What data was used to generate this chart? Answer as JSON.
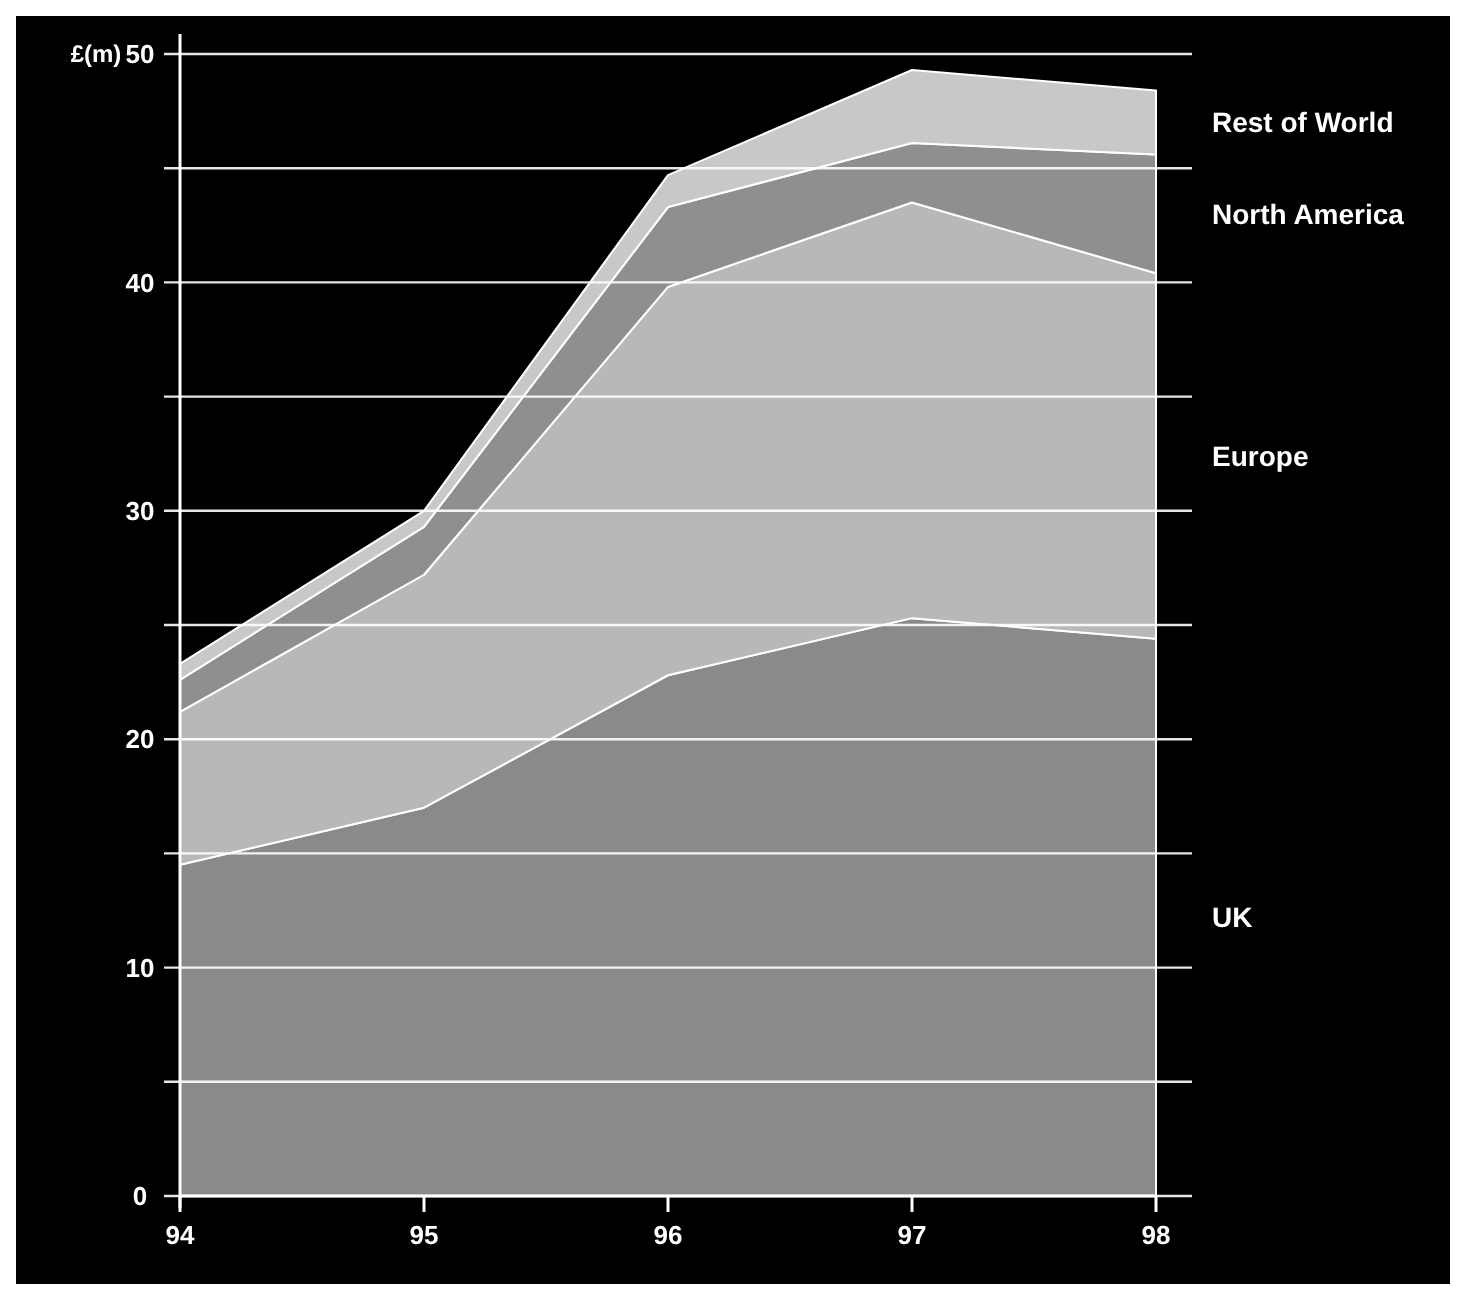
{
  "chart_data": {
    "type": "area",
    "stacked": true,
    "ylabel": "£(m)",
    "x": [
      94,
      95,
      96,
      97,
      98
    ],
    "xlim": [
      94,
      98
    ],
    "xticks": [
      94,
      95,
      96,
      97,
      98
    ],
    "ylim": [
      0,
      50
    ],
    "yticks": [
      0,
      {
        "value": 5,
        "label": null
      },
      10,
      {
        "value": 15,
        "label": null
      },
      20,
      {
        "value": 25,
        "label": null
      },
      30,
      {
        "value": 35,
        "label": null
      },
      40,
      {
        "value": 45,
        "label": null
      },
      50
    ],
    "grid": "y",
    "series": [
      {
        "name": "UK",
        "color": "#8a8a8a",
        "values": [
          14.5,
          17,
          22.8,
          25.3,
          24.4
        ]
      },
      {
        "name": "Europe",
        "color": "#b8b8b8",
        "values": [
          6.7,
          10.2,
          17,
          18.2,
          16
        ]
      },
      {
        "name": "North America",
        "color": "#8f8f8f",
        "values": [
          1.4,
          2.1,
          3.5,
          2.6,
          5.2
        ]
      },
      {
        "name": "Rest of World",
        "color": "#c8c8c8",
        "values": [
          0.7,
          0.7,
          1.4,
          3.2,
          2.8
        ]
      }
    ]
  }
}
